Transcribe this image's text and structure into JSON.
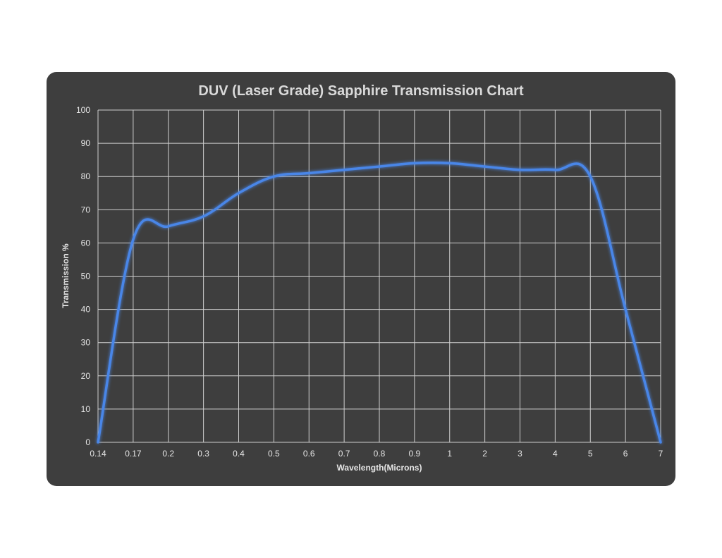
{
  "chart_data": {
    "type": "line",
    "title": "DUV (Laser Grade) Sapphire Transmission Chart",
    "xlabel": "Wavelength(Microns)",
    "ylabel": "Transmission %",
    "x_scale": "categorical",
    "categories": [
      "0.14",
      "0.17",
      "0.2",
      "0.3",
      "0.4",
      "0.5",
      "0.6",
      "0.7",
      "0.8",
      "0.9",
      "1",
      "2",
      "3",
      "4",
      "5",
      "6",
      "7"
    ],
    "y_ticks": [
      0,
      10,
      20,
      30,
      40,
      50,
      60,
      70,
      80,
      90,
      100
    ],
    "ylim": [
      0,
      100
    ],
    "grid": true,
    "legend": "none",
    "series": [
      {
        "color": "#4a86e8",
        "values": [
          0,
          61,
          65,
          68,
          75,
          80,
          81,
          82,
          83,
          84,
          84,
          83,
          82,
          82,
          80,
          40,
          0
        ]
      }
    ]
  }
}
